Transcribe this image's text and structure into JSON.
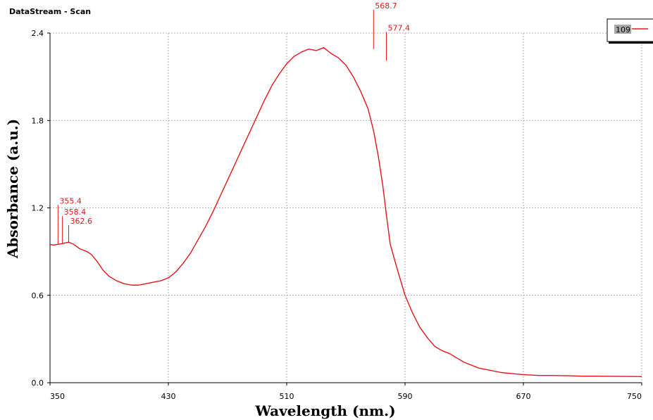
{
  "window": {
    "title": "DataStream - Scan"
  },
  "colors": {
    "series": "#e8141b",
    "grid": "#9a9a9a",
    "legend_swatch": "#a8a8a8"
  },
  "chart_data": {
    "type": "line",
    "xlabel": "Wavelength (nm.)",
    "ylabel": "Absorbance (a.u.)",
    "xlim": [
      350,
      750
    ],
    "ylim": [
      0,
      2.4
    ],
    "xticks": [
      350,
      430,
      510,
      590,
      670,
      750
    ],
    "xtick_labels": [
      "350",
      "430",
      "510",
      "590",
      "670",
      "750"
    ],
    "yticks": [
      0,
      0.6,
      1.2,
      1.8,
      2.4
    ],
    "ytick_labels": [
      "0.0",
      "0.6",
      "1.2",
      "1.8",
      "2.4"
    ],
    "grid": true,
    "legend": {
      "position": "top-right",
      "entries": [
        "109"
      ]
    },
    "series": [
      {
        "name": "109",
        "color": "#e8141b",
        "x": [
          350,
          352,
          355.4,
          358.4,
          362.6,
          366,
          370,
          375,
          378,
          382,
          386,
          390,
          395,
          400,
          405,
          410,
          415,
          420,
          425,
          430,
          435,
          440,
          445,
          450,
          455,
          460,
          465,
          470,
          475,
          480,
          485,
          490,
          495,
          500,
          505,
          510,
          515,
          520,
          525,
          530,
          535,
          540,
          545,
          550,
          555,
          560,
          565,
          568.7,
          572,
          575,
          577.4,
          580,
          585,
          590,
          595,
          600,
          605,
          610,
          615,
          620,
          625,
          630,
          635,
          640,
          645,
          650,
          655,
          660,
          665,
          670,
          680,
          690,
          700,
          710,
          720,
          730,
          740,
          750
        ],
        "y": [
          0.95,
          0.945,
          0.95,
          0.955,
          0.965,
          0.95,
          0.92,
          0.9,
          0.88,
          0.83,
          0.77,
          0.73,
          0.7,
          0.68,
          0.67,
          0.67,
          0.68,
          0.69,
          0.7,
          0.72,
          0.76,
          0.82,
          0.89,
          0.98,
          1.07,
          1.17,
          1.28,
          1.39,
          1.5,
          1.61,
          1.72,
          1.83,
          1.94,
          2.04,
          2.12,
          2.19,
          2.24,
          2.27,
          2.29,
          2.28,
          2.3,
          2.26,
          2.23,
          2.18,
          2.1,
          2.0,
          1.88,
          1.73,
          1.55,
          1.35,
          1.15,
          0.95,
          0.77,
          0.6,
          0.48,
          0.38,
          0.31,
          0.25,
          0.22,
          0.2,
          0.17,
          0.14,
          0.12,
          0.1,
          0.09,
          0.08,
          0.07,
          0.065,
          0.06,
          0.055,
          0.05,
          0.05,
          0.048,
          0.045,
          0.045,
          0.044,
          0.043,
          0.042
        ]
      }
    ],
    "annotations": [
      {
        "x": 355.4,
        "y": 0.95,
        "label": "355.4"
      },
      {
        "x": 358.4,
        "y": 0.955,
        "label": "358.4"
      },
      {
        "x": 362.6,
        "y": 0.965,
        "label": "362.6"
      },
      {
        "x": 568.7,
        "y": 2.29,
        "label": "568.7"
      },
      {
        "x": 577.4,
        "y": 2.21,
        "label": "577.4"
      }
    ]
  }
}
